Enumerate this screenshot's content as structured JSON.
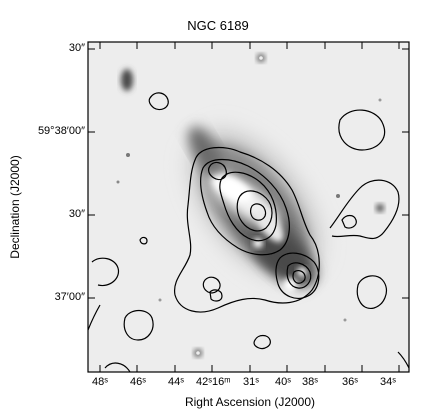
{
  "figure": {
    "title": "NGC 6189",
    "x_axis_label": "Right Ascension (J2000)",
    "y_axis_label": "Declination (J2000)",
    "x_tick_labels": [
      "48ˢ",
      "46ˢ",
      "44ˢ",
      "42ˢ16ᵐ",
      "31ˢ",
      "40ˢ",
      "38ˢ",
      "36ˢ",
      "34ˢ"
    ],
    "y_tick_labels": [
      "30″",
      "59°38′00″",
      "30″",
      "37′00″"
    ],
    "image_style": "greyscale optical image with black contour overlay",
    "contour_color": "#000000"
  }
}
